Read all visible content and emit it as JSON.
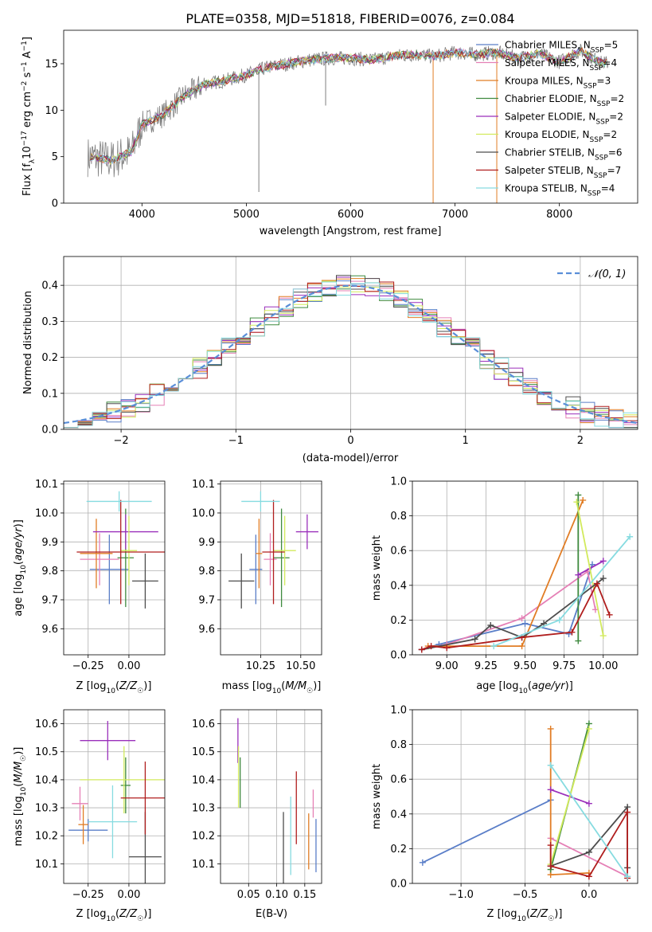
{
  "title": "PLATE=0358, MJD=51818, FIBERID=0076, z=0.084",
  "models": [
    {
      "name": "Chabrier MILES",
      "nssp": "5",
      "color": "#5a7ec8"
    },
    {
      "name": "Salpeter MILES",
      "nssp": "4",
      "color": "#e580b6"
    },
    {
      "name": "Kroupa MILES",
      "nssp": "3",
      "color": "#e17d25"
    },
    {
      "name": "Chabrier ELODIE",
      "nssp": "2",
      "color": "#3f8a3f"
    },
    {
      "name": "Salpeter ELODIE",
      "nssp": "2",
      "color": "#9a2fbb"
    },
    {
      "name": "Kroupa ELODIE",
      "nssp": "2",
      "color": "#d2ea5c"
    },
    {
      "name": "Chabrier STELIB",
      "nssp": "6",
      "color": "#4d4d4d"
    },
    {
      "name": "Salpeter STELIB",
      "nssp": "7",
      "color": "#b01e1e"
    },
    {
      "name": "Kroupa STELIB",
      "nssp": "4",
      "color": "#86dbe0"
    }
  ],
  "chart_data": [
    {
      "type": "line",
      "name": "spectrum",
      "xlabel": "wavelength [Angstrom, rest frame]",
      "ylabel": "Flux [f_λ 10^-17 erg cm^-2 s^-1 A^-1]",
      "xlim": [
        3250,
        8750
      ],
      "ylim": [
        0,
        18.6
      ],
      "xticks": [
        4000,
        5000,
        6000,
        7000,
        8000
      ],
      "yticks": [
        0,
        5,
        10,
        15
      ],
      "data_color": "#7f7f7f",
      "data_x": [
        3500,
        3700,
        3900,
        4000,
        4200,
        4400,
        4600,
        4800,
        5000,
        5200,
        5400,
        5600,
        5800,
        6000,
        6200,
        6400,
        6600,
        6800,
        7000,
        7200,
        7400,
        7600,
        7800,
        8000,
        8200,
        8400
      ],
      "data_y": [
        5.0,
        4.6,
        5.5,
        8.5,
        9.5,
        11.5,
        12.8,
        13.2,
        13.8,
        14.6,
        15.0,
        15.4,
        15.6,
        15.6,
        15.4,
        15.8,
        16.0,
        15.8,
        16.2,
        16.0,
        16.2,
        15.6,
        16.1,
        15.2,
        16.4,
        15.1
      ],
      "grid": false,
      "legend": "upper-right"
    },
    {
      "type": "bar",
      "name": "residual histograms",
      "xlabel": "(data-model)/error",
      "ylabel": "Normed distribution",
      "xlim": [
        -2.5,
        2.5
      ],
      "ylim": [
        0,
        0.48
      ],
      "xticks": [
        -2,
        -1,
        0,
        1,
        2
      ],
      "yticks": [
        0.0,
        0.1,
        0.2,
        0.3,
        0.4
      ],
      "bin_width": 0.125,
      "normal_label": "𝒩(0, 1)",
      "normal_color": "#5a8ed8",
      "grid": true,
      "legend": "upper-right"
    },
    {
      "type": "scatter",
      "name": "Z vs age",
      "xlabel": "Z [log10(Z/Z☉)]",
      "ylabel": "age [log10(age/yr)]",
      "xlim": [
        -0.4,
        0.22
      ],
      "ylim": [
        9.51,
        10.11
      ],
      "xticks": [
        -0.25,
        0.0
      ],
      "yticks": [
        9.6,
        9.7,
        9.8,
        9.9,
        10.0,
        10.1
      ],
      "points": [
        {
          "x": -0.12,
          "y": 9.805,
          "xerr": 0.12,
          "yerr": 0.12
        },
        {
          "x": -0.18,
          "y": 9.84,
          "xerr": 0.12,
          "yerr": 0.09
        },
        {
          "x": -0.2,
          "y": 9.86,
          "xerr": 0.1,
          "yerr": 0.12
        },
        {
          "x": -0.02,
          "y": 9.845,
          "xerr": 0.05,
          "yerr": 0.17
        },
        {
          "x": -0.02,
          "y": 9.935,
          "xerr": 0.2,
          "yerr": 0.06
        },
        {
          "x": 0.0,
          "y": 9.87,
          "xerr": 0.05,
          "yerr": 0.12
        },
        {
          "x": 0.1,
          "y": 9.765,
          "xerr": 0.08,
          "yerr": 0.095
        },
        {
          "x": -0.05,
          "y": 9.865,
          "xerr": 0.27,
          "yerr": 0.18
        },
        {
          "x": -0.06,
          "y": 10.04,
          "xerr": 0.2,
          "yerr": 0.035
        }
      ]
    },
    {
      "type": "scatter",
      "name": "mass vs age",
      "xlabel": "mass [log10(M/M☉)]",
      "ylabel": "",
      "xlim": [
        10.0,
        10.63
      ],
      "ylim": [
        9.51,
        10.11
      ],
      "xticks": [
        10.25,
        10.5
      ],
      "yticks": [
        9.6,
        9.7,
        9.8,
        9.9,
        10.0,
        10.1
      ],
      "points": [
        {
          "x": 10.22,
          "y": 9.805,
          "xerr": 0.04,
          "yerr": 0.12
        },
        {
          "x": 10.31,
          "y": 9.84,
          "xerr": 0.04,
          "yerr": 0.09
        },
        {
          "x": 10.24,
          "y": 9.86,
          "xerr": 0.02,
          "yerr": 0.12
        },
        {
          "x": 10.38,
          "y": 9.845,
          "xerr": 0.05,
          "yerr": 0.17
        },
        {
          "x": 10.54,
          "y": 9.935,
          "xerr": 0.07,
          "yerr": 0.06
        },
        {
          "x": 10.4,
          "y": 9.87,
          "xerr": 0.07,
          "yerr": 0.12
        },
        {
          "x": 10.13,
          "y": 9.765,
          "xerr": 0.08,
          "yerr": 0.095
        },
        {
          "x": 10.33,
          "y": 9.865,
          "xerr": 0.07,
          "yerr": 0.18
        },
        {
          "x": 10.25,
          "y": 10.04,
          "xerr": 0.12,
          "yerr": 0.035
        }
      ]
    },
    {
      "type": "line",
      "name": "age vs mass weight",
      "xlabel": "age [log10(age/yr)]",
      "ylabel": "mass weight",
      "xlim": [
        8.78,
        10.22
      ],
      "ylim": [
        0,
        1.0
      ],
      "xticks": [
        9.0,
        9.25,
        9.5,
        9.75,
        10.0
      ],
      "yticks": [
        0.0,
        0.2,
        0.4,
        0.6,
        0.8,
        1.0
      ],
      "series": [
        {
          "x": [
            8.84,
            8.95,
            9.5,
            9.78,
            9.93
          ],
          "y": [
            0.03,
            0.06,
            0.18,
            0.12,
            0.52
          ]
        },
        {
          "x": [
            8.84,
            9.0,
            9.48,
            9.9,
            9.95
          ],
          "y": [
            0.03,
            0.06,
            0.21,
            0.48,
            0.26
          ]
        },
        {
          "x": [
            8.88,
            9.48,
            9.87
          ],
          "y": [
            0.05,
            0.05,
            0.89
          ]
        },
        {
          "x": [
            9.84,
            9.84
          ],
          "y": [
            0.92,
            0.08
          ]
        },
        {
          "x": [
            9.84,
            10.0
          ],
          "y": [
            0.46,
            0.54
          ]
        },
        {
          "x": [
            9.83,
            10.0
          ],
          "y": [
            0.88,
            0.11
          ]
        },
        {
          "x": [
            8.84,
            9.18,
            9.28,
            9.48,
            9.62,
            10.0
          ],
          "y": [
            0.03,
            0.09,
            0.17,
            0.1,
            0.18,
            0.44
          ]
        },
        {
          "x": [
            8.84,
            8.9,
            9.0,
            9.48,
            9.8,
            9.96,
            10.04
          ],
          "y": [
            0.03,
            0.05,
            0.04,
            0.1,
            0.13,
            0.41,
            0.23
          ]
        },
        {
          "x": [
            9.3,
            9.72,
            10.17
          ],
          "y": [
            0.05,
            0.2,
            0.68
          ]
        }
      ]
    },
    {
      "type": "scatter",
      "name": "Z vs mass",
      "xlabel": "Z [log10(Z/Z☉)]",
      "ylabel": "mass [log10(M/M☉)]",
      "xlim": [
        -0.4,
        0.22
      ],
      "ylim": [
        10.03,
        10.65
      ],
      "xticks": [
        -0.25,
        0.0
      ],
      "yticks": [
        10.1,
        10.2,
        10.3,
        10.4,
        10.5,
        10.6
      ],
      "points": [
        {
          "x": -0.25,
          "y": 10.22,
          "xerr": 0.12,
          "yerr": 0.04
        },
        {
          "x": -0.3,
          "y": 10.315,
          "xerr": 0.05,
          "yerr": 0.06
        },
        {
          "x": -0.28,
          "y": 10.24,
          "xerr": 0.03,
          "yerr": 0.07
        },
        {
          "x": -0.02,
          "y": 10.38,
          "xerr": 0.03,
          "yerr": 0.1
        },
        {
          "x": -0.13,
          "y": 10.54,
          "xerr": 0.17,
          "yerr": 0.07
        },
        {
          "x": -0.03,
          "y": 10.4,
          "xerr": 0.27,
          "yerr": 0.12
        },
        {
          "x": 0.1,
          "y": 10.125,
          "xerr": 0.1,
          "yerr": 0.16
        },
        {
          "x": 0.1,
          "y": 10.335,
          "xerr": 0.15,
          "yerr": 0.13
        },
        {
          "x": -0.1,
          "y": 10.25,
          "xerr": 0.15,
          "yerr": 0.13
        }
      ]
    },
    {
      "type": "scatter",
      "name": "E(B-V) vs mass",
      "xlabel": "E(B-V)",
      "ylabel": "",
      "xlim": [
        0.0,
        0.18
      ],
      "ylim": [
        10.03,
        10.65
      ],
      "xticks": [
        0.05,
        0.1,
        0.15
      ],
      "yticks": [
        10.1,
        10.2,
        10.3,
        10.4,
        10.5,
        10.6
      ],
      "points": [
        {
          "x": 0.17,
          "y": 10.165,
          "yerr": 0.095
        },
        {
          "x": 0.165,
          "y": 10.315,
          "yerr": 0.05
        },
        {
          "x": 0.157,
          "y": 10.18,
          "yerr": 0.1
        },
        {
          "x": 0.035,
          "y": 10.39,
          "yerr": 0.09
        },
        {
          "x": 0.031,
          "y": 10.54,
          "yerr": 0.08
        },
        {
          "x": 0.032,
          "y": 10.41,
          "yerr": 0.11
        },
        {
          "x": 0.112,
          "y": 10.125,
          "yerr": 0.16
        },
        {
          "x": 0.135,
          "y": 10.3,
          "yerr": 0.13
        },
        {
          "x": 0.125,
          "y": 10.2,
          "yerr": 0.14
        }
      ]
    },
    {
      "type": "line",
      "name": "Z vs mass weight",
      "xlabel": "Z [log10(Z/Z☉)]",
      "ylabel": "mass weight",
      "xlim": [
        -1.38,
        0.38
      ],
      "ylim": [
        0,
        1.0
      ],
      "xticks": [
        -1.0,
        -0.5,
        0.0
      ],
      "yticks": [
        0.0,
        0.2,
        0.4,
        0.6,
        0.8,
        1.0
      ],
      "series": [
        {
          "x": [
            -1.3,
            -0.3
          ],
          "y": [
            0.12,
            0.48
          ]
        },
        {
          "x": [
            -0.3,
            0.3
          ],
          "y": [
            0.26,
            0.04
          ]
        },
        {
          "x": [
            -0.3,
            -0.3,
            0.0
          ],
          "y": [
            0.89,
            0.05,
            0.06
          ]
        },
        {
          "x": [
            -0.3,
            0.0
          ],
          "y": [
            0.08,
            0.92
          ]
        },
        {
          "x": [
            -0.3,
            0.0
          ],
          "y": [
            0.54,
            0.46
          ]
        },
        {
          "x": [
            -0.3,
            0.0
          ],
          "y": [
            0.11,
            0.89
          ]
        },
        {
          "x": [
            -0.3,
            0.0,
            0.3,
            0.3
          ],
          "y": [
            0.1,
            0.18,
            0.44,
            0.09
          ]
        },
        {
          "x": [
            -0.3,
            -0.3,
            0.0,
            0.3,
            0.3
          ],
          "y": [
            0.22,
            0.1,
            0.04,
            0.41,
            0.03
          ]
        },
        {
          "x": [
            -0.3,
            0.3
          ],
          "y": [
            0.68,
            0.04
          ]
        }
      ]
    }
  ]
}
